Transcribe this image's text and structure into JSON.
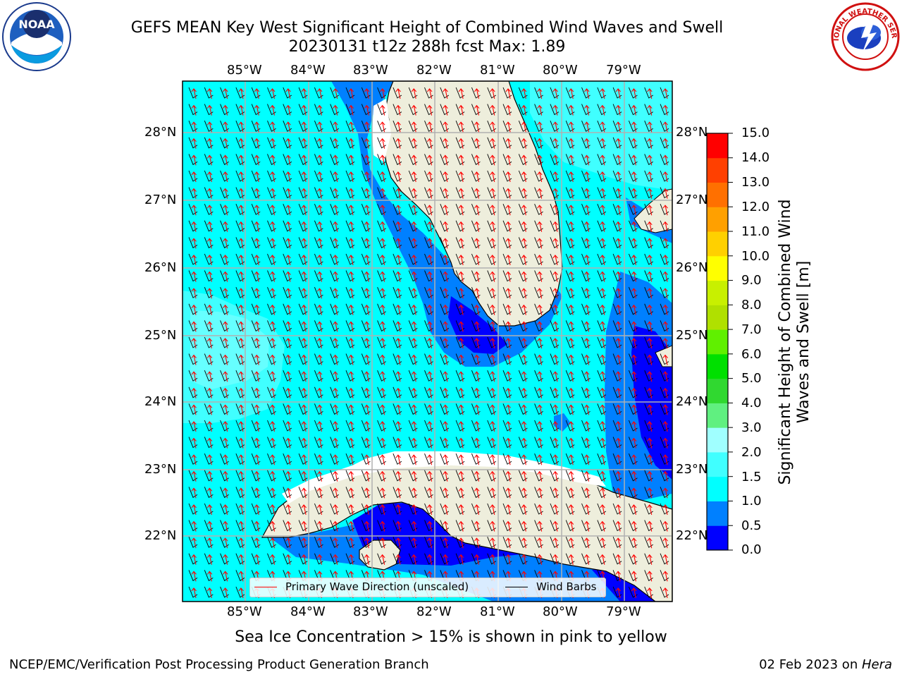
{
  "header": {
    "title_line1": "GEFS MEAN Key West Significant Height of Combined Wind Waves and Swell",
    "title_line2": "20230131 t12z 288h fcst   Max: 1.89"
  },
  "logos": {
    "noaa": {
      "icon": "noaa-logo",
      "text": "NOAA"
    },
    "nws": {
      "icon": "nws-logo",
      "text": "NATIONAL WEATHER SERVICE"
    }
  },
  "map": {
    "lon_labels": [
      "85°W",
      "84°W",
      "83°W",
      "82°W",
      "81°W",
      "80°W",
      "79°W"
    ],
    "lat_labels": [
      "28°N",
      "27°N",
      "26°N",
      "25°N",
      "24°N",
      "23°N",
      "22°N"
    ],
    "colors": {
      "land": "#eeeedc",
      "ocean_1_1_5": "#00ffff",
      "ocean_1_5_2": "#40ffff",
      "ocean_2_3": "#66ffff",
      "ocean_0_5_1": "#0080ff",
      "ocean_0_0_5": "#0000ff",
      "wave_arrow": "#ff0000",
      "wind_barb": "#000000",
      "grid": "#b0b0b0"
    }
  },
  "legend": {
    "wave_label": "Primary Wave Direction (unscaled)",
    "wind_label": "Wind Barbs"
  },
  "colorbar": {
    "title": "Significant Height of Combined Wind Waves and Swell [m]",
    "tick_labels": [
      "15.0",
      "14.0",
      "13.0",
      "12.0",
      "11.0",
      "10.0",
      "9.0",
      "8.0",
      "7.0",
      "6.0",
      "5.0",
      "4.0",
      "3.0",
      "2.0",
      "1.5",
      "1.0",
      "0.5",
      "0.0"
    ],
    "bands": [
      {
        "range": "0.0-0.5",
        "color": "#0000ff"
      },
      {
        "range": "0.5-1.0",
        "color": "#0080ff"
      },
      {
        "range": "1.0-1.5",
        "color": "#00ffff"
      },
      {
        "range": "1.5-2.0",
        "color": "#40ffff"
      },
      {
        "range": "2.0-3.0",
        "color": "#a0ffff"
      },
      {
        "range": "3.0-4.0",
        "color": "#60f080"
      },
      {
        "range": "4.0-5.0",
        "color": "#30d830"
      },
      {
        "range": "5.0-6.0",
        "color": "#00e000"
      },
      {
        "range": "6.0-7.0",
        "color": "#60f000"
      },
      {
        "range": "7.0-8.0",
        "color": "#b0e000"
      },
      {
        "range": "8.0-9.0",
        "color": "#c8f000"
      },
      {
        "range": "9.0-10.0",
        "color": "#ffff00"
      },
      {
        "range": "10.0-11.0",
        "color": "#ffd000"
      },
      {
        "range": "11.0-12.0",
        "color": "#ffa000"
      },
      {
        "range": "12.0-13.0",
        "color": "#ff7000"
      },
      {
        "range": "13.0-14.0",
        "color": "#ff4000"
      },
      {
        "range": "14.0-15.0",
        "color": "#ff0000"
      }
    ]
  },
  "note": "Sea Ice Concentration > 15% is shown in pink to yellow",
  "footer": {
    "left": "NCEP/EMC/Verification Post Processing Product Generation Branch",
    "right_date": "02 Feb 2023 on ",
    "right_host": "Hera"
  }
}
